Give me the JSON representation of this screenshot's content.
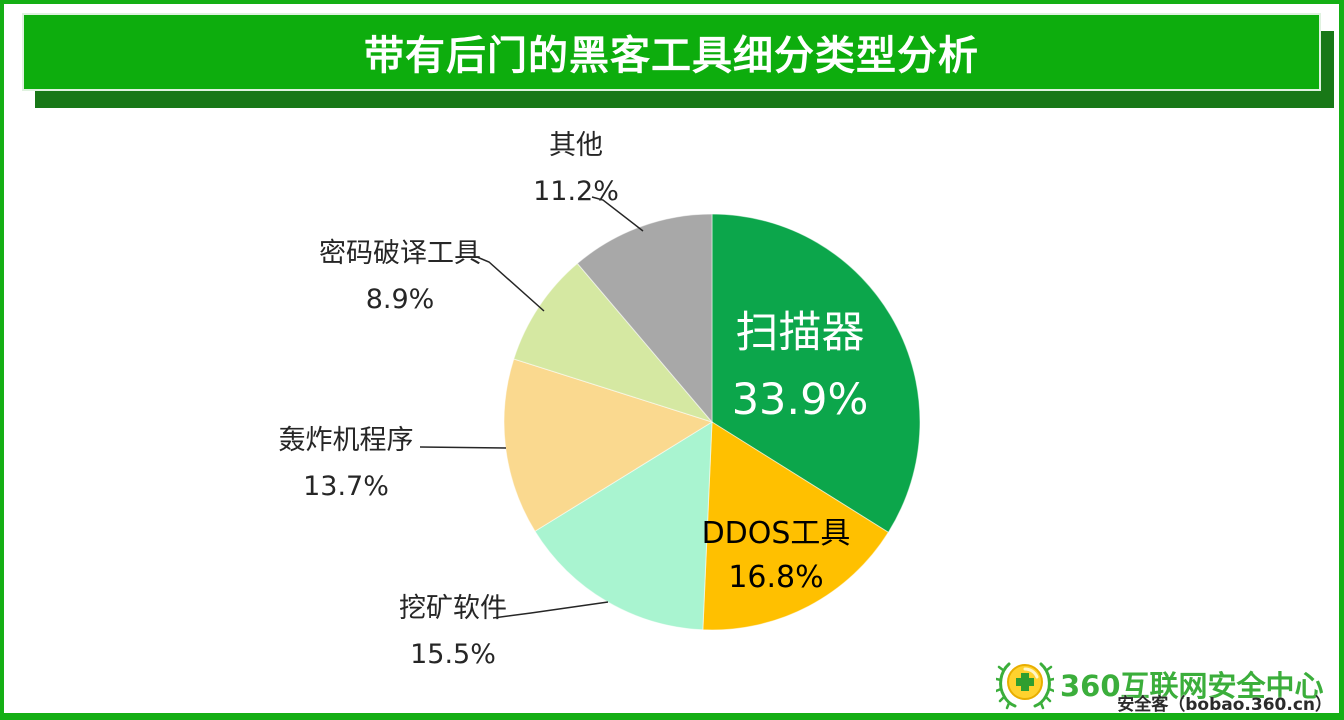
{
  "header": {
    "title": "带有后门的黑客工具细分类型分析"
  },
  "chart_data": {
    "type": "pie",
    "title": "带有后门的黑客工具细分类型分析",
    "unit": "%",
    "start_angle_deg": 0,
    "direction": "clockwise",
    "legend": "none",
    "slices": [
      {
        "label": "扫描器",
        "value": 33.9,
        "color": "#0CA64B",
        "label_placement": "inside",
        "label_color": "#FFFFFF"
      },
      {
        "label": "DDOS工具",
        "value": 16.8,
        "color": "#FFC000",
        "label_placement": "inside",
        "label_color": "#000000"
      },
      {
        "label": "挖矿软件",
        "value": 15.5,
        "color": "#A9F4D0",
        "label_placement": "outside",
        "label_color": "#262626"
      },
      {
        "label": "轰炸机程序",
        "value": 13.7,
        "color": "#FAD98F",
        "label_placement": "outside",
        "label_color": "#262626"
      },
      {
        "label": "密码破译工具",
        "value": 8.9,
        "color": "#D5E8A2",
        "label_placement": "outside",
        "label_color": "#262626"
      },
      {
        "label": "其他",
        "value": 11.2,
        "color": "#A8A8A8",
        "label_placement": "outside",
        "label_color": "#262626"
      }
    ]
  },
  "footer": {
    "logo_text": "360互联网安全中心",
    "watermark": "安全客（bobao.360.cn）"
  },
  "colors": {
    "frame_border": "#15AF15",
    "banner": "#0DAD0D",
    "banner_shadow": "#187817",
    "logo_green": "#3BAE3B",
    "leader_line": "#262626"
  }
}
